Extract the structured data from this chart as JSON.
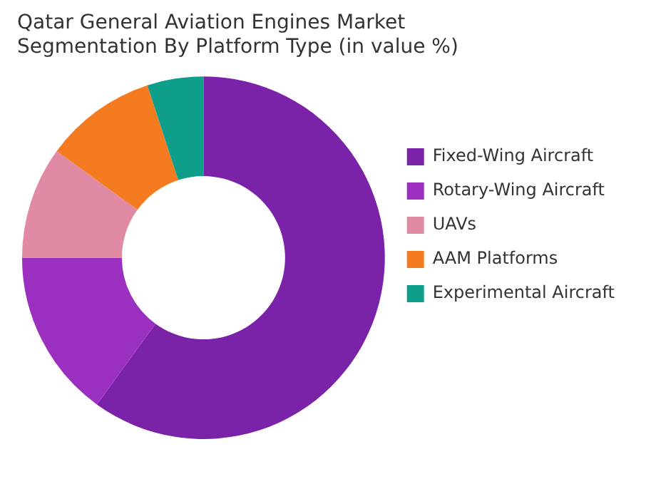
{
  "chart_data": {
    "type": "donut",
    "title": "Qatar General Aviation Engines Market Segmentation By Platform Type (in value %)",
    "categories": [
      "Fixed-Wing Aircraft",
      "Rotary-Wing Aircraft",
      "UAVs",
      "AAM Platforms",
      "Experimental Aircraft"
    ],
    "values": [
      60,
      15,
      10,
      10,
      5
    ],
    "colors": [
      "#7a22a8",
      "#9b2fbf",
      "#e08ba3",
      "#f47b20",
      "#0f9e8a"
    ],
    "legend": "right"
  }
}
